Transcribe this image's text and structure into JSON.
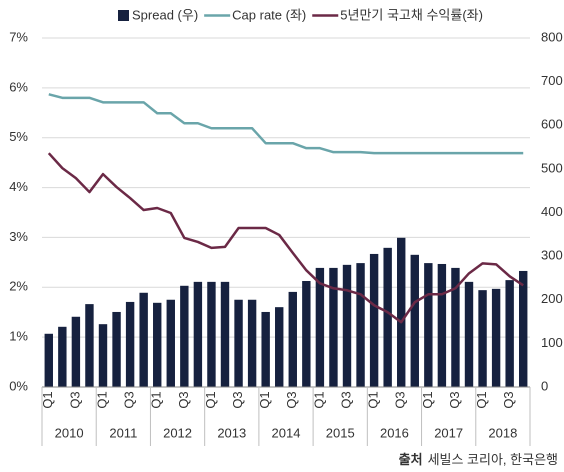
{
  "chart_data": {
    "type": "combo",
    "categories": [
      "Q1",
      null,
      "Q3",
      null,
      "Q1",
      null,
      "Q3",
      null,
      "Q1",
      null,
      "Q3",
      null,
      "Q1",
      null,
      "Q3",
      null,
      "Q1",
      null,
      "Q3",
      null,
      "Q1",
      null,
      "Q3",
      null,
      "Q1",
      null,
      "Q3",
      null,
      "Q1",
      null,
      "Q3",
      null,
      "Q1",
      null,
      "Q3",
      null
    ],
    "years": [
      "2010",
      "2011",
      "2012",
      "2013",
      "2014",
      "2015",
      "2016",
      "2017",
      "2018"
    ],
    "series": [
      {
        "name": "Spread (우)",
        "type": "bar",
        "axis": "y2",
        "color": "#16213f",
        "values": [
          122,
          138,
          161,
          190,
          144,
          172,
          195,
          216,
          193,
          200,
          232,
          241,
          241,
          241,
          200,
          200,
          172,
          183,
          218,
          243,
          273,
          273,
          280,
          284,
          305,
          319,
          342,
          303,
          284,
          282,
          273,
          241,
          222,
          225,
          245,
          266
        ]
      },
      {
        "name": "Cap rate (좌)",
        "type": "line",
        "color": "#6aa5aa",
        "values": [
          5.87,
          5.8,
          5.8,
          5.8,
          5.71,
          5.71,
          5.71,
          5.71,
          5.49,
          5.49,
          5.29,
          5.29,
          5.19,
          5.19,
          5.19,
          5.19,
          4.89,
          4.89,
          4.89,
          4.79,
          4.79,
          4.71,
          4.71,
          4.71,
          4.69,
          4.69,
          4.69,
          4.69,
          4.69,
          4.69,
          4.69,
          4.69,
          4.69,
          4.69,
          4.69,
          4.69
        ]
      },
      {
        "name": "5년만기 국고채 수익률(좌)",
        "type": "line",
        "color": "#6b2946",
        "values": [
          4.69,
          4.39,
          4.19,
          3.91,
          4.27,
          4.01,
          3.79,
          3.55,
          3.59,
          3.49,
          2.99,
          2.91,
          2.79,
          2.81,
          3.19,
          3.19,
          3.19,
          3.05,
          2.69,
          2.34,
          2.08,
          1.98,
          1.94,
          1.86,
          1.64,
          1.5,
          1.3,
          1.7,
          1.86,
          1.86,
          1.98,
          2.28,
          2.48,
          2.46,
          2.22,
          2.04
        ]
      }
    ],
    "ylim": [
      0,
      7
    ],
    "yticks": [
      {
        "value": 0,
        "label": "0%"
      },
      {
        "value": 1,
        "label": "1%"
      },
      {
        "value": 2,
        "label": "2%"
      },
      {
        "value": 3,
        "label": "3%"
      },
      {
        "value": 4,
        "label": "4%"
      },
      {
        "value": 5,
        "label": "5%"
      },
      {
        "value": 6,
        "label": "6%"
      },
      {
        "value": 7,
        "label": "7%"
      }
    ],
    "y2lim": [
      0,
      800
    ],
    "y2ticks": [
      0,
      100,
      200,
      300,
      400,
      500,
      600,
      700,
      800
    ],
    "grid": true,
    "source": {
      "label": "출처",
      "text": "세빌스 코리아, 한국은행"
    }
  }
}
